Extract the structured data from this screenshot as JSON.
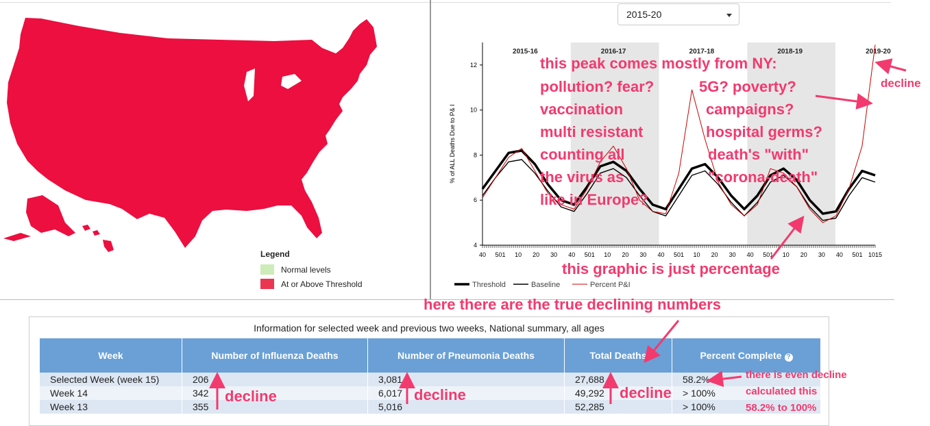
{
  "map": {
    "legend": {
      "title": "Legend",
      "items": [
        {
          "label": "Normal levels",
          "color": "#cdecb9"
        },
        {
          "label": "At or Above Threshold",
          "color": "#ec3550"
        }
      ]
    },
    "fill_color": "#ec0f3f"
  },
  "season_select": {
    "value": "2015-20"
  },
  "chart_data": {
    "type": "line",
    "ylabel": "% of ALL Deaths Due to P& I",
    "ylim": [
      4,
      13
    ],
    "yticks": [
      4,
      6,
      8,
      10,
      12
    ],
    "x_tick_labels": [
      "40",
      "501",
      "10",
      "20",
      "30",
      "40",
      "501",
      "10",
      "20",
      "30",
      "40",
      "501",
      "10",
      "20",
      "30",
      "40",
      "501",
      "10",
      "20",
      "30",
      "40",
      "501",
      "1015"
    ],
    "season_labels": [
      "2015-16",
      "2016-17",
      "2017-18",
      "2018-19",
      "2019-20"
    ],
    "legend": [
      "Threshold",
      "Baseline",
      "Percent P&I"
    ],
    "series": [
      {
        "name": "Threshold",
        "color": "#000000",
        "values": [
          6.5,
          7.3,
          8.1,
          8.2,
          7.6,
          6.7,
          6.0,
          5.8,
          6.6,
          7.5,
          7.7,
          7.3,
          6.5,
          5.8,
          5.6,
          6.5,
          7.4,
          7.6,
          7.0,
          6.2,
          5.6,
          6.2,
          7.1,
          7.4,
          6.9,
          6.0,
          5.4,
          5.5,
          6.5,
          7.3,
          7.1
        ]
      },
      {
        "name": "Baseline",
        "color": "#000000",
        "values": [
          6.2,
          7.0,
          7.7,
          7.8,
          7.2,
          6.4,
          5.7,
          5.5,
          6.3,
          7.2,
          7.4,
          7.0,
          6.2,
          5.5,
          5.3,
          6.2,
          7.1,
          7.3,
          6.7,
          5.9,
          5.3,
          5.9,
          6.8,
          7.1,
          6.6,
          5.7,
          5.1,
          5.2,
          6.2,
          7.0,
          6.8
        ]
      },
      {
        "name": "Percent P&I",
        "color": "#cc0000",
        "values": [
          6.1,
          7.0,
          7.9,
          8.3,
          7.3,
          6.3,
          5.8,
          5.6,
          6.5,
          7.7,
          8.4,
          7.4,
          6.0,
          5.5,
          5.4,
          7.2,
          10.9,
          8.7,
          6.8,
          5.8,
          5.3,
          5.8,
          7.4,
          7.2,
          6.6,
          5.6,
          5.0,
          5.3,
          6.5,
          8.4,
          12.9
        ]
      }
    ]
  },
  "table": {
    "caption": "Information for selected week and previous two weeks, National summary, all ages",
    "headers": [
      "Week",
      "Number of Influenza Deaths",
      "Number of Pneumonia Deaths",
      "Total Deaths",
      "Percent Complete"
    ],
    "rows": [
      [
        "Selected Week (week 15)",
        "206",
        "3,081",
        "27,688",
        "58.2%"
      ],
      [
        "Week 14",
        "342",
        "6,017",
        "49,292",
        "> 100%"
      ],
      [
        "Week 13",
        "355",
        "5,016",
        "52,285",
        "> 100%"
      ]
    ]
  },
  "annotations": {
    "peak_lines": [
      "this peak comes mostly from NY:",
      "pollution? fear?",
      "5G? poverty?",
      "vaccination",
      "campaigns?",
      "multi resistant",
      "hospital germs?",
      "counting all",
      "death's \"with\"",
      "the virus as",
      "\"corona-death\"",
      "like in Europe?"
    ],
    "decline_chart": "decline",
    "percentage": "this graphic is just percentage",
    "true_numbers": "here there are the true declining numbers",
    "decline_1": "decline",
    "decline_2": "decline",
    "decline_3": "decline",
    "even_decline": [
      "there is even decline",
      "calculated this",
      "58.2% to 100%"
    ],
    "color": "#f23a6e"
  }
}
